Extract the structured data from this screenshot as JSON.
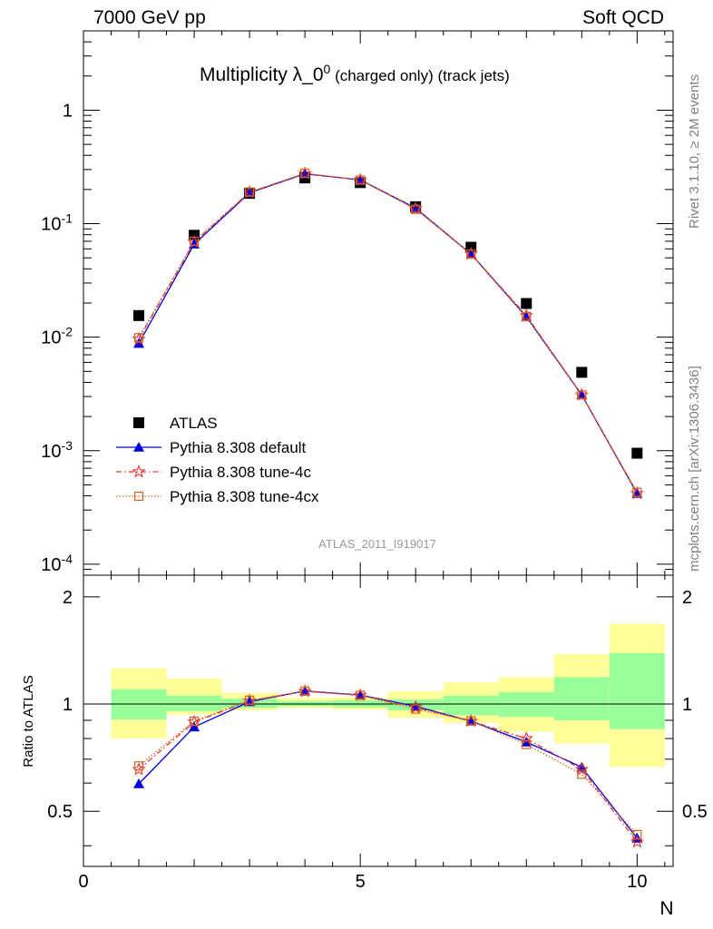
{
  "header": {
    "left": "7000 GeV pp",
    "right": "Soft QCD"
  },
  "side_labels": {
    "rivet": "Rivet 3.1.10, ≥ 2M events",
    "mcplots": "mcplots.cern.ch [arXiv:1306.3436]"
  },
  "chart_data": {
    "type": "line",
    "title": "Multiplicity λ_0⁰ (charged only) (track jets)",
    "title_main": "Multiplicity λ_0",
    "title_sup": "0",
    "title_sub": " (charged only) (track jets)",
    "analysis_label": "ATLAS_2011_I919017",
    "xlabel": "N",
    "ratio_ylabel": "Ratio to ATLAS",
    "xlim": [
      0,
      10.65
    ],
    "ylim": [
      8e-05,
      5
    ],
    "ratio_ylim": [
      0.35,
      2.3
    ],
    "yscale": "log",
    "x_ticks": [
      "0",
      "5",
      "10"
    ],
    "y_ticks": [
      "10^-4",
      "10^-3",
      "10^-2",
      "10^-1",
      "1"
    ],
    "ratio_ticks": [
      "0.5",
      "1",
      "2"
    ],
    "legend_position": "middle-left",
    "series": [
      {
        "name": "ATLAS",
        "color": "#000000",
        "marker": "square",
        "line": "none",
        "x": [
          1,
          2,
          3,
          4,
          5,
          6,
          7,
          8,
          9,
          10
        ],
        "y": [
          0.0155,
          0.079,
          0.185,
          0.253,
          0.23,
          0.141,
          0.062,
          0.0198,
          0.0049,
          0.00095
        ]
      },
      {
        "name": "Pythia 8.308 default",
        "color": "#0000dd",
        "marker": "triangle",
        "line": "solid",
        "x": [
          1,
          2,
          3,
          4,
          5,
          6,
          7,
          8,
          9,
          10
        ],
        "y": [
          0.0088,
          0.066,
          0.187,
          0.275,
          0.243,
          0.137,
          0.054,
          0.0151,
          0.0031,
          0.00042
        ],
        "ratio": [
          0.597,
          0.862,
          1.015,
          1.088,
          1.06,
          0.985,
          0.895,
          0.782,
          0.665,
          0.42
        ]
      },
      {
        "name": "Pythia 8.308 tune-4c",
        "color": "#ee3333",
        "marker": "star",
        "line": "dashdot",
        "x": [
          1,
          2,
          3,
          4,
          5,
          6,
          7,
          8,
          9,
          10
        ],
        "y": [
          0.0096,
          0.069,
          0.189,
          0.276,
          0.243,
          0.136,
          0.054,
          0.0155,
          0.0031,
          0.00042
        ],
        "ratio": [
          0.655,
          0.89,
          1.02,
          1.085,
          1.058,
          0.978,
          0.895,
          0.8,
          0.655,
          0.41
        ]
      },
      {
        "name": "Pythia 8.308 tune-4cx",
        "color": "#cc6622",
        "marker": "open-square",
        "line": "dotted",
        "x": [
          1,
          2,
          3,
          4,
          5,
          6,
          7,
          8,
          9,
          10
        ],
        "y": [
          0.0099,
          0.07,
          0.19,
          0.278,
          0.242,
          0.134,
          0.054,
          0.0152,
          0.0031,
          0.00043
        ],
        "ratio": [
          0.67,
          0.895,
          1.025,
          1.087,
          1.058,
          0.968,
          0.897,
          0.77,
          0.635,
          0.43
        ]
      }
    ],
    "uncertainty_bands": {
      "x_edges": [
        0.5,
        1.5,
        2.5,
        3.5,
        4.5,
        5.5,
        6.5,
        7.5,
        8.5,
        9.5,
        10.5
      ],
      "inner_color": "#99ff99",
      "outer_color": "#ffff99",
      "inner_low": [
        0.905,
        0.955,
        0.975,
        0.985,
        0.98,
        0.96,
        0.93,
        0.92,
        0.9,
        0.85
      ],
      "inner_high": [
        1.1,
        1.055,
        1.035,
        1.02,
        1.025,
        1.03,
        1.055,
        1.08,
        1.19,
        1.39
      ],
      "outer_low": [
        0.8,
        0.935,
        0.96,
        0.975,
        0.965,
        0.915,
        0.885,
        0.835,
        0.775,
        0.665
      ],
      "outer_high": [
        1.26,
        1.18,
        1.075,
        1.04,
        1.045,
        1.085,
        1.15,
        1.19,
        1.38,
        1.68
      ]
    }
  }
}
